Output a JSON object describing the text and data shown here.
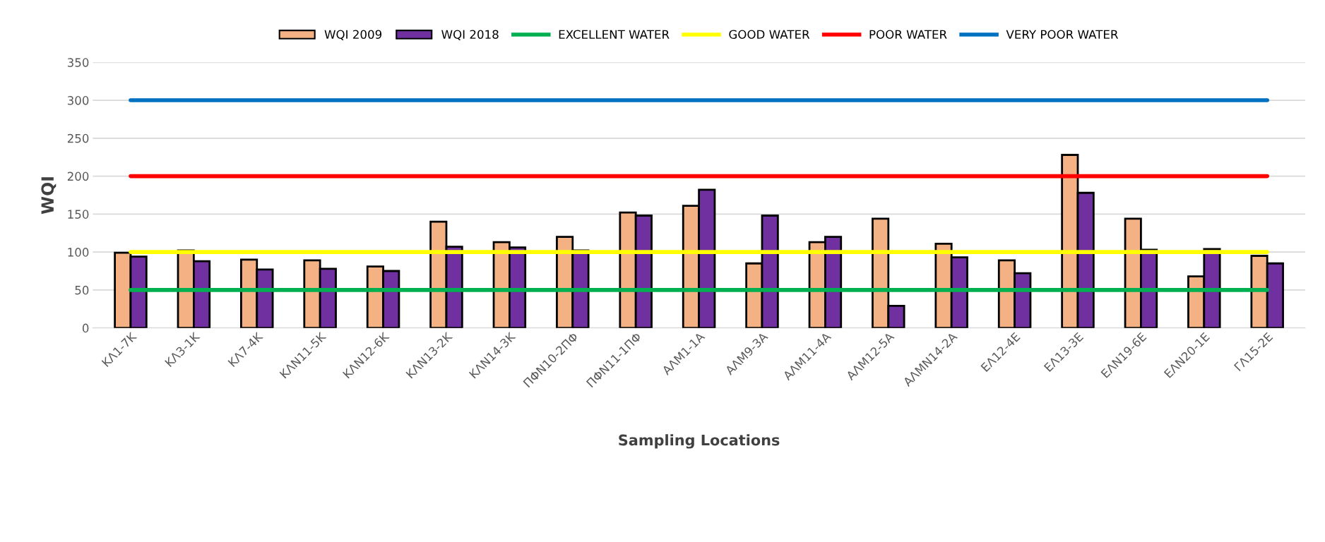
{
  "chart_data": {
    "type": "bar",
    "xlabel": "Sampling Locations",
    "ylabel": "WQI",
    "categories": [
      "ΚΛ1-7Κ",
      "ΚΛ3-1Κ",
      "ΚΛ7-4Κ",
      "ΚΛΝ11-5Κ",
      "ΚΛΝ12-6Κ",
      "ΚΛΝ13-2Κ",
      "ΚΛΝ14-3Κ",
      "ΠΦΝ10-2ΠΦ",
      "ΠΦΝ11-1ΠΦ",
      "ΑΛΜ1-1Α",
      "ΑΛΜ9-3Α",
      "ΑΛΜ11-4Α",
      "ΑΛΜ12-5Α",
      "ΑΛΜΝ14-2Α",
      "ΕΛ12-4Ε",
      "ΕΛ13-3Ε",
      "ΕΛΝ19-6Ε",
      "ΕΛΝ20-1Ε",
      "ΓΛ15-2Ε"
    ],
    "series": [
      {
        "name": "WQI 2009",
        "color": "#f4b183",
        "values": [
          99,
          102,
          90,
          89,
          81,
          140,
          113,
          120,
          152,
          161,
          85,
          113,
          144,
          111,
          89,
          228,
          144,
          68,
          95
        ]
      },
      {
        "name": "WQI 2018",
        "color": "#7030a0",
        "values": [
          94,
          88,
          77,
          78,
          75,
          107,
          106,
          102,
          148,
          182,
          148,
          120,
          29,
          93,
          72,
          178,
          103,
          104,
          85
        ]
      }
    ],
    "ref_lines": [
      {
        "axis": "y",
        "value": 50,
        "label": "EXCELLENT WATER",
        "color": "#00b050"
      },
      {
        "axis": "y",
        "value": 100,
        "label": "GOOD WATER",
        "color": "#ffff00"
      },
      {
        "axis": "y",
        "value": 200,
        "label": "POOR WATER",
        "color": "#ff0000"
      },
      {
        "axis": "y",
        "value": 300,
        "label": "VERY POOR WATER",
        "color": "#0070c0"
      }
    ],
    "ylim": [
      0,
      350
    ],
    "yticks": [
      0,
      50,
      100,
      150,
      200,
      250,
      300,
      350
    ],
    "grid": "y",
    "legend": "top"
  }
}
